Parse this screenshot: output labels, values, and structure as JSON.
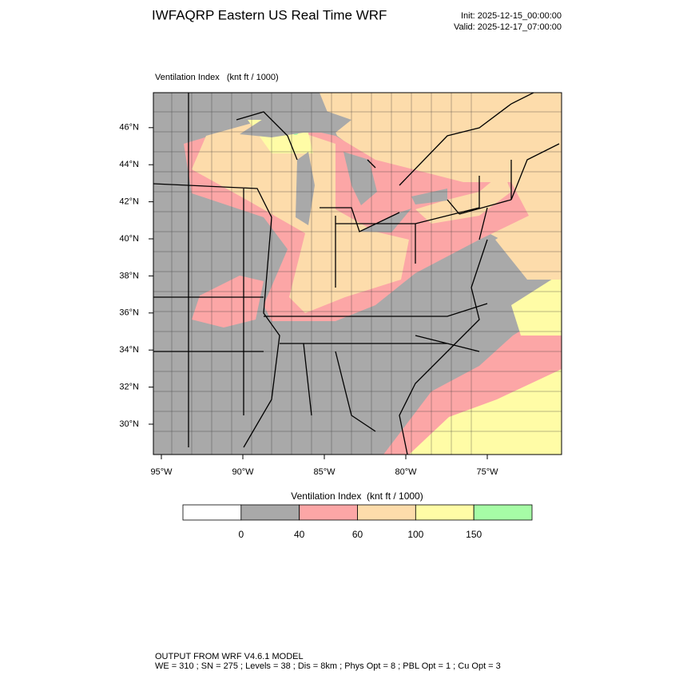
{
  "header": {
    "title": "IWFAQRP Eastern US Real Time WRF",
    "init": "Init: 2025-12-15_00:00:00",
    "valid": "Valid: 2025-12-17_07:00:00"
  },
  "map": {
    "label": "Ventilation Index   (knt ft / 1000)",
    "lat_labels": [
      "30°N",
      "32°N",
      "34°N",
      "36°N",
      "38°N",
      "40°N",
      "42°N",
      "44°N",
      "46°N"
    ],
    "lon_labels": [
      "95°W",
      "90°W",
      "85°W",
      "80°W",
      "75°W"
    ]
  },
  "colorbar": {
    "title": "Ventilation Index  (knt ft / 1000)",
    "colors": [
      "#ffffff",
      "#a9a9a9",
      "#fca6a6",
      "#fddcab",
      "#fffca6",
      "#a6fca6"
    ],
    "levels": [
      0,
      40,
      60,
      100,
      150
    ]
  },
  "footer": {
    "line1": "OUTPUT FROM WRF V4.6.1 MODEL",
    "line2": "WE = 310 ; SN = 275 ; Levels = 38 ; Dis = 8km ; Phys Opt = 8 ; PBL Opt = 1 ; Cu Opt = 3"
  }
}
